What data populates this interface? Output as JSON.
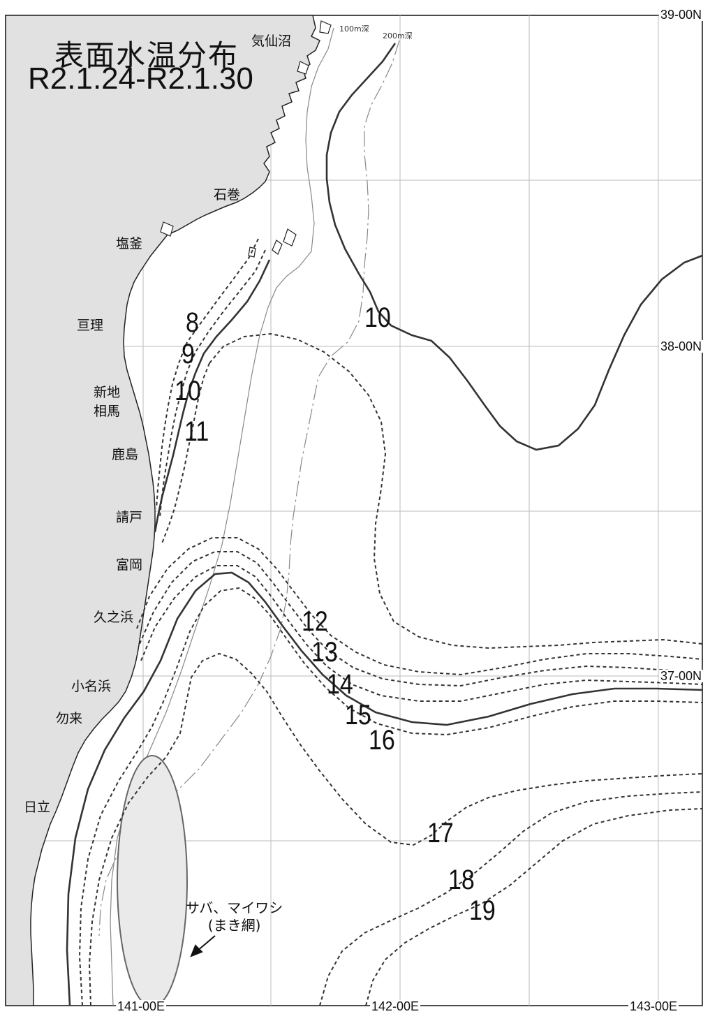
{
  "title": {
    "line1": "表面水温分布",
    "line2": "R2.1.24-R2.1.30"
  },
  "places": [
    "気仙沼",
    "石巻",
    "塩釜",
    "亘理",
    "新地",
    "相馬",
    "鹿島",
    "請戸",
    "富岡",
    "久之浜",
    "小名浜",
    "勿来",
    "日立"
  ],
  "lat_labels": [
    "39-00N",
    "38-00N",
    "37-00N"
  ],
  "lon_labels": [
    "141-00E",
    "142-00E",
    "143-00E"
  ],
  "isotherm_labels": [
    "8",
    "9",
    "10",
    "11",
    "10",
    "12",
    "13",
    "14",
    "15",
    "16",
    "17",
    "18",
    "19"
  ],
  "depth_labels": [
    "100m深",
    "200m深"
  ],
  "fishing_area": {
    "line1": "サバ、マイワシ",
    "line2": "(まき網)"
  },
  "colors": {
    "land": "#e1e1e1",
    "line": "#333333",
    "fishing_area": "#eaeaea"
  }
}
